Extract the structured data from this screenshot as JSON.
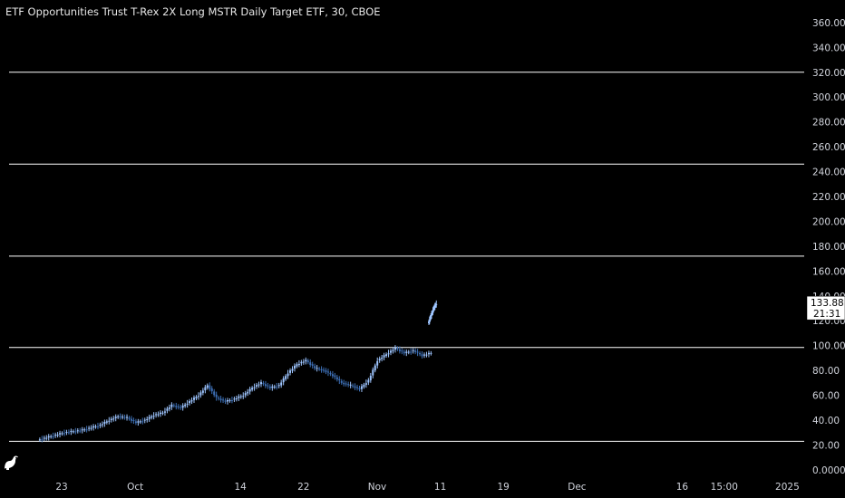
{
  "chart_data": {
    "type": "candlestick",
    "title": "ETF Opportunities Trust T-Rex 2X Long MSTR Daily Target ETF, 30, CBOE",
    "y_ticks": [
      0,
      20,
      40,
      60,
      80,
      100,
      120,
      140,
      160,
      180,
      200,
      220,
      240,
      260,
      280,
      300,
      320,
      340,
      360
    ],
    "y_tick_labels": [
      "0.0000",
      "20.00",
      "40.00",
      "60.00",
      "80.00",
      "100.00",
      "120.00",
      "140.00",
      "160.00",
      "180.00",
      "200.00",
      "220.00",
      "240.00",
      "260.00",
      "280.00",
      "300.00",
      "320.00",
      "340.00",
      "360.00"
    ],
    "ylim": [
      -3,
      365
    ],
    "x_labels": [
      {
        "label": "23",
        "index": 0
      },
      {
        "label": "Oct",
        "index": 7
      },
      {
        "label": "14",
        "index": 17
      },
      {
        "label": "22",
        "index": 23
      },
      {
        "label": "Nov",
        "index": 30
      },
      {
        "label": "11",
        "index": 36
      },
      {
        "label": "19",
        "index": 42
      },
      {
        "label": "Dec",
        "index": 49
      },
      {
        "label": "16",
        "index": 59
      },
      {
        "label": "15:00",
        "index": 63
      },
      {
        "label": "2025",
        "index": 69
      }
    ],
    "horizontal_lines": [
      23,
      98.5,
      172,
      246,
      320
    ],
    "last_price": "133.88",
    "countdown": "21:31",
    "series": [
      {
        "values": [
          24,
          26,
          28,
          30,
          31,
          32,
          34,
          36,
          40,
          43,
          42,
          38,
          40,
          44,
          46,
          52,
          50,
          55,
          60,
          68,
          58,
          55,
          57,
          60,
          66,
          70,
          66,
          68,
          78,
          85,
          88,
          82,
          80,
          76,
          70,
          68,
          65,
          72,
          88,
          93,
          98,
          94,
          96,
          92,
          94
        ]
      },
      {
        "values": [
          118,
          124,
          130,
          133.88
        ]
      }
    ]
  },
  "colors": {
    "background": "#000000",
    "up": "#9ec5ff",
    "down": "#3d6fb5",
    "line": "#ffffff",
    "text": "#d1d4dc"
  },
  "icons": {
    "logo": "tradingview-logo-icon"
  }
}
